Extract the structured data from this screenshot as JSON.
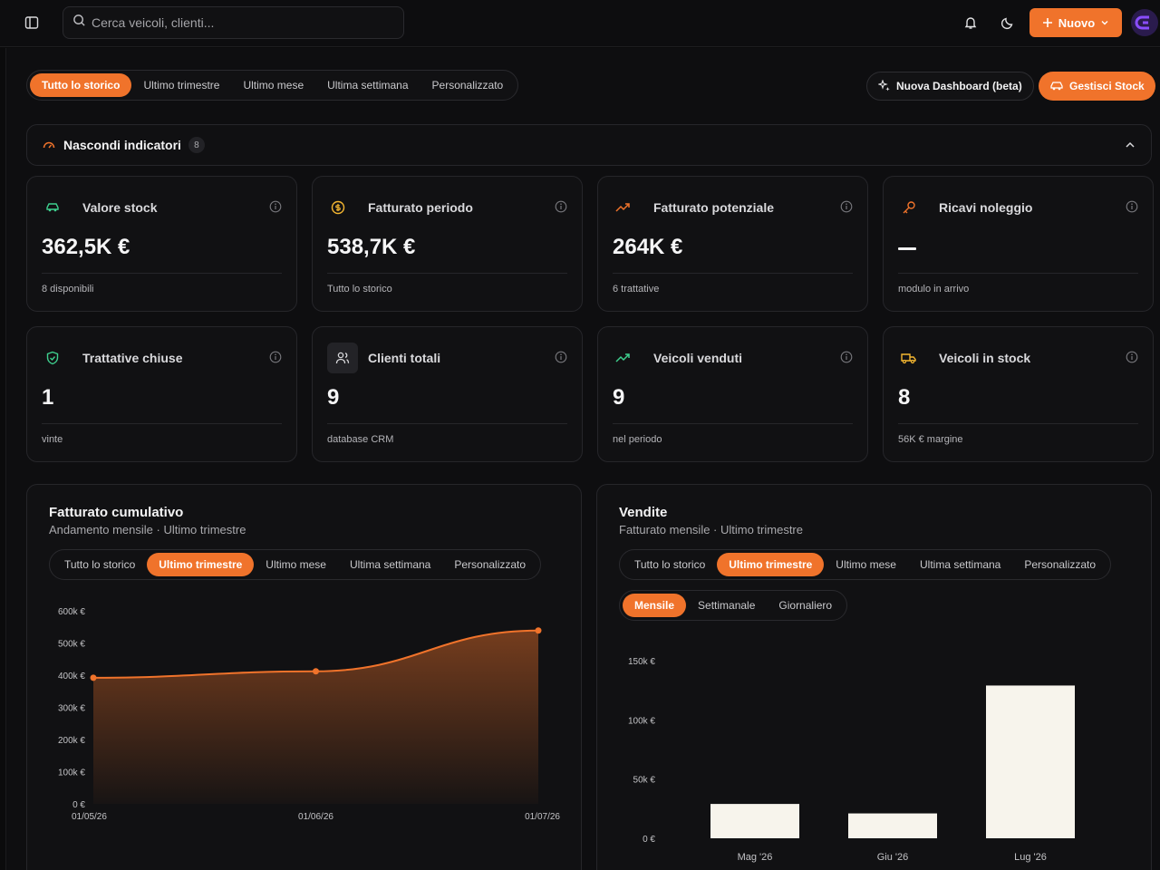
{
  "header": {
    "search_placeholder": "Cerca veicoli, clienti...",
    "new_label": "Nuovo"
  },
  "filters": {
    "periods": [
      "Tutto lo storico",
      "Ultimo trimestre",
      "Ultimo mese",
      "Ultima settimana",
      "Personalizzato"
    ],
    "active": 0,
    "new_dashboard_label": "Nuova Dashboard (beta)",
    "manage_stock_label": "Gestisci Stock"
  },
  "indicators": {
    "label": "Nascondi indicatori",
    "count": "8"
  },
  "kpis": [
    {
      "title": "Valore stock",
      "value": "362,5K €",
      "sub": "8 disponibili",
      "icon": "car-icon"
    },
    {
      "title": "Fatturato periodo",
      "value": "538,7K €",
      "sub": "Tutto lo storico",
      "icon": "coin-icon"
    },
    {
      "title": "Fatturato potenziale",
      "value": "264K €",
      "sub": "6 trattative",
      "icon": "trend-up-icon"
    },
    {
      "title": "Ricavi noleggio",
      "value": "",
      "sub": "modulo in arrivo",
      "icon": "key-icon"
    },
    {
      "title": "Trattative chiuse",
      "value": "1",
      "sub": "vinte",
      "icon": "shield-check-icon"
    },
    {
      "title": "Clienti totali",
      "value": "9",
      "sub": "database CRM",
      "icon": "users-icon"
    },
    {
      "title": "Veicoli venduti",
      "value": "9",
      "sub": "nel periodo",
      "icon": "trend-up-icon"
    },
    {
      "title": "Veicoli in stock",
      "value": "8",
      "sub": "56K € margine",
      "icon": "truck-icon"
    }
  ],
  "colors": {
    "accent": "#f0732b",
    "green": "#3ecf8e",
    "bar": "#f7f4ec"
  },
  "revenue_panel": {
    "title": "Fatturato cumulativo",
    "subtitle": "Andamento mensile · Ultimo trimestre",
    "periods": [
      "Tutto lo storico",
      "Ultimo trimestre",
      "Ultimo mese",
      "Ultima settimana",
      "Personalizzato"
    ],
    "active": 1
  },
  "sales_panel": {
    "title": "Vendite",
    "subtitle": "Fatturato mensile · Ultimo trimestre",
    "periods": [
      "Tutto lo storico",
      "Ultimo trimestre",
      "Ultimo mese",
      "Ultima settimana",
      "Personalizzato"
    ],
    "active": 1,
    "granularity": [
      "Mensile",
      "Settimanale",
      "Giornaliero"
    ],
    "granularity_active": 0
  },
  "chart_data": [
    {
      "type": "area",
      "title": "Fatturato cumulativo",
      "x": [
        "01/05/26",
        "01/06/26",
        "01/07/26"
      ],
      "y_ticks": [
        "0 €",
        "100k €",
        "200k €",
        "300k €",
        "400k €",
        "500k €",
        "600k €"
      ],
      "ylim": [
        0,
        600000
      ],
      "series": [
        {
          "values": [
            392000,
            412000,
            538700
          ]
        }
      ]
    },
    {
      "type": "bar",
      "title": "Vendite",
      "categories": [
        "Mag '26",
        "Giu '26",
        "Lug '26"
      ],
      "y_ticks": [
        "0 €",
        "50k €",
        "100k €",
        "150k €"
      ],
      "ylim": [
        0,
        150000
      ],
      "series": [
        {
          "values": [
            29000,
            21000,
            129000
          ]
        }
      ]
    }
  ]
}
